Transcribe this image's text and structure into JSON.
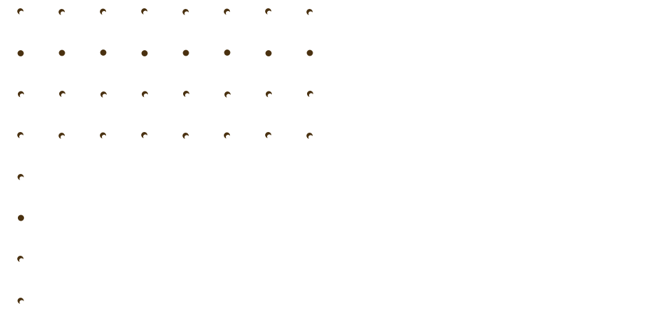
{
  "palette": {
    "background": "#ffffff",
    "dot": "#4a3110",
    "highlight": "#ffffff"
  },
  "grid": {
    "columns": 8,
    "rows": 8
  },
  "rows": [
    {
      "columns": 8,
      "style": "crescent"
    },
    {
      "columns": 8,
      "style": "full"
    },
    {
      "columns": 8,
      "style": "crescent"
    },
    {
      "columns": 8,
      "style": "crescent"
    },
    {
      "columns": 1,
      "style": "crescent"
    },
    {
      "columns": 1,
      "style": "full"
    },
    {
      "columns": 1,
      "style": "crescent"
    },
    {
      "columns": 1,
      "style": "crescent"
    }
  ]
}
